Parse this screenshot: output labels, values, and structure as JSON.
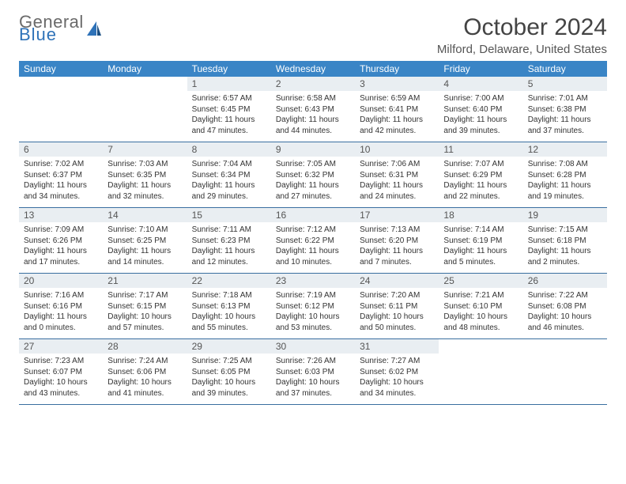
{
  "logo": {
    "general": "General",
    "blue": "Blue"
  },
  "title": "October 2024",
  "location": "Milford, Delaware, United States",
  "weekdays": [
    "Sunday",
    "Monday",
    "Tuesday",
    "Wednesday",
    "Thursday",
    "Friday",
    "Saturday"
  ],
  "colors": {
    "header_bg": "#3a85c6",
    "daynum_bg": "#e9eef2",
    "rule": "#3a6fa0",
    "logo_gray": "#6a6a6a",
    "logo_blue": "#2e72b8"
  },
  "weeks": [
    [
      {
        "n": "",
        "sunrise": "",
        "sunset": "",
        "daylight": ""
      },
      {
        "n": "",
        "sunrise": "",
        "sunset": "",
        "daylight": ""
      },
      {
        "n": "1",
        "sunrise": "Sunrise: 6:57 AM",
        "sunset": "Sunset: 6:45 PM",
        "daylight": "Daylight: 11 hours and 47 minutes."
      },
      {
        "n": "2",
        "sunrise": "Sunrise: 6:58 AM",
        "sunset": "Sunset: 6:43 PM",
        "daylight": "Daylight: 11 hours and 44 minutes."
      },
      {
        "n": "3",
        "sunrise": "Sunrise: 6:59 AM",
        "sunset": "Sunset: 6:41 PM",
        "daylight": "Daylight: 11 hours and 42 minutes."
      },
      {
        "n": "4",
        "sunrise": "Sunrise: 7:00 AM",
        "sunset": "Sunset: 6:40 PM",
        "daylight": "Daylight: 11 hours and 39 minutes."
      },
      {
        "n": "5",
        "sunrise": "Sunrise: 7:01 AM",
        "sunset": "Sunset: 6:38 PM",
        "daylight": "Daylight: 11 hours and 37 minutes."
      }
    ],
    [
      {
        "n": "6",
        "sunrise": "Sunrise: 7:02 AM",
        "sunset": "Sunset: 6:37 PM",
        "daylight": "Daylight: 11 hours and 34 minutes."
      },
      {
        "n": "7",
        "sunrise": "Sunrise: 7:03 AM",
        "sunset": "Sunset: 6:35 PM",
        "daylight": "Daylight: 11 hours and 32 minutes."
      },
      {
        "n": "8",
        "sunrise": "Sunrise: 7:04 AM",
        "sunset": "Sunset: 6:34 PM",
        "daylight": "Daylight: 11 hours and 29 minutes."
      },
      {
        "n": "9",
        "sunrise": "Sunrise: 7:05 AM",
        "sunset": "Sunset: 6:32 PM",
        "daylight": "Daylight: 11 hours and 27 minutes."
      },
      {
        "n": "10",
        "sunrise": "Sunrise: 7:06 AM",
        "sunset": "Sunset: 6:31 PM",
        "daylight": "Daylight: 11 hours and 24 minutes."
      },
      {
        "n": "11",
        "sunrise": "Sunrise: 7:07 AM",
        "sunset": "Sunset: 6:29 PM",
        "daylight": "Daylight: 11 hours and 22 minutes."
      },
      {
        "n": "12",
        "sunrise": "Sunrise: 7:08 AM",
        "sunset": "Sunset: 6:28 PM",
        "daylight": "Daylight: 11 hours and 19 minutes."
      }
    ],
    [
      {
        "n": "13",
        "sunrise": "Sunrise: 7:09 AM",
        "sunset": "Sunset: 6:26 PM",
        "daylight": "Daylight: 11 hours and 17 minutes."
      },
      {
        "n": "14",
        "sunrise": "Sunrise: 7:10 AM",
        "sunset": "Sunset: 6:25 PM",
        "daylight": "Daylight: 11 hours and 14 minutes."
      },
      {
        "n": "15",
        "sunrise": "Sunrise: 7:11 AM",
        "sunset": "Sunset: 6:23 PM",
        "daylight": "Daylight: 11 hours and 12 minutes."
      },
      {
        "n": "16",
        "sunrise": "Sunrise: 7:12 AM",
        "sunset": "Sunset: 6:22 PM",
        "daylight": "Daylight: 11 hours and 10 minutes."
      },
      {
        "n": "17",
        "sunrise": "Sunrise: 7:13 AM",
        "sunset": "Sunset: 6:20 PM",
        "daylight": "Daylight: 11 hours and 7 minutes."
      },
      {
        "n": "18",
        "sunrise": "Sunrise: 7:14 AM",
        "sunset": "Sunset: 6:19 PM",
        "daylight": "Daylight: 11 hours and 5 minutes."
      },
      {
        "n": "19",
        "sunrise": "Sunrise: 7:15 AM",
        "sunset": "Sunset: 6:18 PM",
        "daylight": "Daylight: 11 hours and 2 minutes."
      }
    ],
    [
      {
        "n": "20",
        "sunrise": "Sunrise: 7:16 AM",
        "sunset": "Sunset: 6:16 PM",
        "daylight": "Daylight: 11 hours and 0 minutes."
      },
      {
        "n": "21",
        "sunrise": "Sunrise: 7:17 AM",
        "sunset": "Sunset: 6:15 PM",
        "daylight": "Daylight: 10 hours and 57 minutes."
      },
      {
        "n": "22",
        "sunrise": "Sunrise: 7:18 AM",
        "sunset": "Sunset: 6:13 PM",
        "daylight": "Daylight: 10 hours and 55 minutes."
      },
      {
        "n": "23",
        "sunrise": "Sunrise: 7:19 AM",
        "sunset": "Sunset: 6:12 PM",
        "daylight": "Daylight: 10 hours and 53 minutes."
      },
      {
        "n": "24",
        "sunrise": "Sunrise: 7:20 AM",
        "sunset": "Sunset: 6:11 PM",
        "daylight": "Daylight: 10 hours and 50 minutes."
      },
      {
        "n": "25",
        "sunrise": "Sunrise: 7:21 AM",
        "sunset": "Sunset: 6:10 PM",
        "daylight": "Daylight: 10 hours and 48 minutes."
      },
      {
        "n": "26",
        "sunrise": "Sunrise: 7:22 AM",
        "sunset": "Sunset: 6:08 PM",
        "daylight": "Daylight: 10 hours and 46 minutes."
      }
    ],
    [
      {
        "n": "27",
        "sunrise": "Sunrise: 7:23 AM",
        "sunset": "Sunset: 6:07 PM",
        "daylight": "Daylight: 10 hours and 43 minutes."
      },
      {
        "n": "28",
        "sunrise": "Sunrise: 7:24 AM",
        "sunset": "Sunset: 6:06 PM",
        "daylight": "Daylight: 10 hours and 41 minutes."
      },
      {
        "n": "29",
        "sunrise": "Sunrise: 7:25 AM",
        "sunset": "Sunset: 6:05 PM",
        "daylight": "Daylight: 10 hours and 39 minutes."
      },
      {
        "n": "30",
        "sunrise": "Sunrise: 7:26 AM",
        "sunset": "Sunset: 6:03 PM",
        "daylight": "Daylight: 10 hours and 37 minutes."
      },
      {
        "n": "31",
        "sunrise": "Sunrise: 7:27 AM",
        "sunset": "Sunset: 6:02 PM",
        "daylight": "Daylight: 10 hours and 34 minutes."
      },
      {
        "n": "",
        "sunrise": "",
        "sunset": "",
        "daylight": ""
      },
      {
        "n": "",
        "sunrise": "",
        "sunset": "",
        "daylight": ""
      }
    ]
  ]
}
